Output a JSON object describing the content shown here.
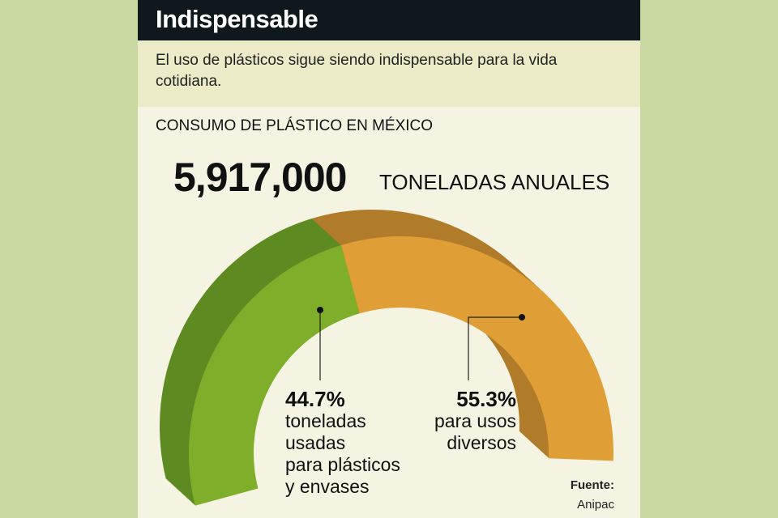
{
  "header": {
    "title": "Indispensable"
  },
  "subtitle": "El uso de plásticos sigue siendo indispensable para la vida cotidiana.",
  "chart_data": {
    "type": "pie",
    "style": "3d half-donut",
    "title": "CONSUMO DE PLÁSTICO EN MÉXICO",
    "total_value": "5,917,000",
    "total_unit": "TONELADAS ANUALES",
    "slices": [
      {
        "value": 44.7,
        "label": "44.7%",
        "desc": [
          "toneladas",
          "usadas",
          "para plásticos",
          "y envases"
        ],
        "color": "#7fae2a",
        "side": "#5e8a22"
      },
      {
        "value": 55.3,
        "label": "55.3%",
        "desc": [
          "para usos",
          "diversos"
        ],
        "color": "#e09f36",
        "side": "#b17c2b"
      }
    ]
  },
  "source": {
    "label": "Fuente:",
    "name": "Anipac"
  }
}
